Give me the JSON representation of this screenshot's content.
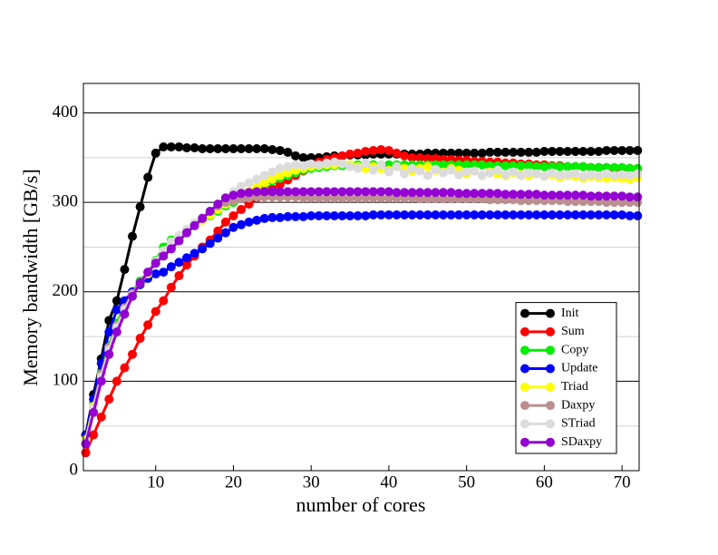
{
  "chart_data": {
    "type": "line",
    "xlabel": "number of cores",
    "ylabel": "Memory bandwidth [GB/s]",
    "x": [
      1,
      2,
      3,
      4,
      5,
      6,
      7,
      8,
      9,
      10,
      11,
      12,
      13,
      14,
      15,
      16,
      17,
      18,
      19,
      20,
      21,
      22,
      23,
      24,
      25,
      26,
      27,
      28,
      29,
      30,
      31,
      32,
      33,
      34,
      35,
      36,
      37,
      38,
      39,
      40,
      41,
      42,
      43,
      44,
      45,
      46,
      47,
      48,
      49,
      50,
      51,
      52,
      53,
      54,
      55,
      56,
      57,
      58,
      59,
      60,
      61,
      62,
      63,
      64,
      65,
      66,
      67,
      68,
      69,
      70,
      71,
      72
    ],
    "xlim": [
      0.7,
      72.2
    ],
    "xticks": [
      10,
      20,
      30,
      40,
      50,
      60,
      70
    ],
    "ylim": [
      0,
      433
    ],
    "yticks": [
      0,
      100,
      200,
      300,
      400
    ],
    "minor_yticks": [
      50,
      150,
      250,
      350
    ],
    "grid": true,
    "legend": "lower right",
    "series": [
      {
        "name": "Init",
        "color": "#000000",
        "values": [
          40,
          85,
          125,
          168,
          190,
          225,
          262,
          295,
          328,
          355,
          362,
          362,
          362,
          361,
          361,
          360,
          360,
          360,
          360,
          360,
          360,
          360,
          360,
          360,
          359,
          358,
          356,
          352,
          350,
          350,
          350,
          351,
          352,
          352,
          353,
          353,
          353,
          354,
          354,
          354,
          354,
          354,
          354,
          354,
          355,
          355,
          355,
          355,
          355,
          355,
          355,
          355,
          356,
          356,
          356,
          356,
          356,
          356,
          356,
          357,
          357,
          357,
          357,
          357,
          357,
          357,
          357,
          358,
          358,
          358,
          358,
          358
        ]
      },
      {
        "name": "Sum",
        "color": "#ff0000",
        "values": [
          20,
          40,
          60,
          80,
          100,
          115,
          130,
          148,
          163,
          178,
          190,
          205,
          218,
          230,
          240,
          250,
          258,
          268,
          278,
          285,
          292,
          298,
          305,
          310,
          315,
          320,
          325,
          330,
          335,
          340,
          345,
          348,
          350,
          352,
          354,
          355,
          357,
          358,
          359,
          358,
          355,
          352,
          350,
          350,
          349,
          349,
          348,
          348,
          347,
          347,
          346,
          346,
          345,
          345,
          344,
          344,
          343,
          343,
          342,
          342,
          341,
          341,
          340,
          340,
          340,
          339,
          339,
          339,
          338,
          338,
          338,
          337
        ]
      },
      {
        "name": "Copy",
        "color": "#00ee00",
        "values": [
          35,
          75,
          110,
          140,
          165,
          185,
          200,
          212,
          222,
          235,
          250,
          258,
          262,
          268,
          275,
          280,
          285,
          290,
          296,
          300,
          305,
          310,
          315,
          320,
          324,
          327,
          330,
          333,
          336,
          338,
          339,
          340,
          341,
          341,
          342,
          342,
          342,
          342,
          342,
          342,
          342,
          342,
          342,
          342,
          342,
          342,
          342,
          342,
          342,
          342,
          342,
          342,
          341,
          341,
          341,
          341,
          341,
          341,
          340,
          340,
          340,
          340,
          340,
          340,
          340,
          339,
          339,
          339,
          339,
          339,
          338,
          338
        ]
      },
      {
        "name": "Update",
        "color": "#0000ff",
        "values": [
          40,
          80,
          120,
          155,
          180,
          190,
          200,
          208,
          215,
          220,
          222,
          228,
          233,
          238,
          243,
          248,
          254,
          260,
          266,
          272,
          275,
          278,
          280,
          282,
          283,
          283,
          284,
          284,
          284,
          285,
          285,
          285,
          285,
          285,
          285,
          285,
          285,
          286,
          286,
          286,
          286,
          286,
          286,
          286,
          286,
          286,
          286,
          286,
          286,
          286,
          286,
          286,
          286,
          286,
          286,
          286,
          286,
          286,
          286,
          286,
          286,
          286,
          286,
          286,
          286,
          286,
          286,
          286,
          286,
          286,
          285,
          285
        ]
      },
      {
        "name": "Triad",
        "color": "#ffff00",
        "values": [
          35,
          72,
          108,
          138,
          162,
          182,
          198,
          210,
          220,
          232,
          245,
          255,
          262,
          268,
          275,
          280,
          286,
          292,
          298,
          303,
          308,
          312,
          317,
          322,
          326,
          330,
          333,
          336,
          338,
          340,
          341,
          342,
          342,
          343,
          342,
          340,
          338,
          340,
          338,
          336,
          340,
          338,
          335,
          338,
          340,
          336,
          334,
          338,
          336,
          332,
          335,
          330,
          334,
          332,
          330,
          333,
          331,
          330,
          332,
          329,
          331,
          328,
          330,
          329,
          327,
          329,
          328,
          327,
          328,
          327,
          326,
          328
        ]
      },
      {
        "name": "Daxpy",
        "color": "#bc8f8f",
        "values": [
          30,
          70,
          108,
          138,
          162,
          182,
          198,
          210,
          222,
          232,
          242,
          250,
          258,
          266,
          274,
          282,
          290,
          296,
          300,
          302,
          304,
          305,
          306,
          306,
          306,
          306,
          306,
          306,
          305,
          305,
          305,
          305,
          305,
          305,
          305,
          305,
          305,
          305,
          305,
          305,
          305,
          305,
          305,
          304,
          304,
          304,
          304,
          304,
          304,
          304,
          304,
          304,
          303,
          303,
          303,
          303,
          302,
          302,
          302,
          302,
          302,
          302,
          301,
          301,
          301,
          301,
          301,
          300,
          300,
          300,
          300,
          300
        ]
      },
      {
        "name": "STriad",
        "color": "#dcdcdc",
        "values": [
          32,
          70,
          105,
          135,
          160,
          180,
          196,
          210,
          222,
          234,
          246,
          256,
          263,
          270,
          277,
          283,
          290,
          298,
          305,
          312,
          318,
          322,
          326,
          330,
          334,
          338,
          340,
          342,
          341,
          343,
          342,
          344,
          345,
          343,
          340,
          338,
          344,
          336,
          342,
          334,
          340,
          332,
          338,
          335,
          330,
          337,
          333,
          336,
          331,
          334,
          335,
          330,
          333,
          336,
          331,
          334,
          330,
          333,
          332,
          329,
          333,
          330,
          331,
          332,
          329,
          331,
          330,
          332,
          330,
          331,
          330,
          332
        ]
      },
      {
        "name": "SDaxpy",
        "color": "#9400d3",
        "values": [
          30,
          65,
          100,
          130,
          155,
          175,
          195,
          210,
          222,
          232,
          240,
          248,
          257,
          266,
          274,
          282,
          290,
          298,
          305,
          308,
          310,
          311,
          312,
          312,
          312,
          312,
          312,
          312,
          312,
          312,
          312,
          312,
          312,
          312,
          312,
          312,
          312,
          312,
          312,
          312,
          311,
          311,
          311,
          311,
          311,
          311,
          311,
          311,
          310,
          310,
          310,
          310,
          310,
          310,
          309,
          309,
          309,
          309,
          309,
          308,
          308,
          308,
          308,
          308,
          308,
          307,
          307,
          307,
          307,
          307,
          306,
          306
        ]
      }
    ]
  }
}
